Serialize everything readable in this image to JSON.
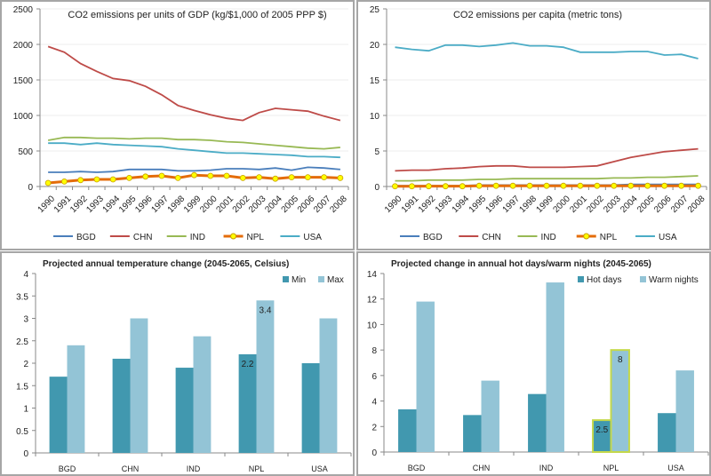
{
  "chart_data": [
    {
      "type": "line",
      "title": "CO2 emissions per units of GDP (kg/$1,000 of 2005 PPP $)",
      "xlabel": "",
      "ylabel": "",
      "x": [
        "1990",
        "1991",
        "1992",
        "1993",
        "1994",
        "1995",
        "1996",
        "1997",
        "1998",
        "1999",
        "2000",
        "2001",
        "2002",
        "2003",
        "2004",
        "2005",
        "2006",
        "2007",
        "2008"
      ],
      "ylim": [
        0,
        2500
      ],
      "yticks": [
        "0",
        "500",
        "1000",
        "1500",
        "2000",
        "2500"
      ],
      "grid": true,
      "legend": "bottom",
      "series": [
        {
          "name": "BGD",
          "color": "#4a7ebb",
          "values": [
            200,
            200,
            210,
            200,
            210,
            240,
            240,
            240,
            220,
            220,
            230,
            250,
            250,
            240,
            260,
            230,
            270,
            260,
            240
          ]
        },
        {
          "name": "CHN",
          "color": "#be4b48",
          "values": [
            1970,
            1890,
            1730,
            1620,
            1520,
            1490,
            1410,
            1290,
            1140,
            1070,
            1010,
            960,
            930,
            1040,
            1100,
            1080,
            1060,
            990,
            930
          ]
        },
        {
          "name": "IND",
          "color": "#98b954",
          "values": [
            650,
            690,
            690,
            680,
            680,
            670,
            680,
            680,
            660,
            660,
            650,
            630,
            620,
            600,
            580,
            560,
            540,
            530,
            550
          ]
        },
        {
          "name": "NPL",
          "color": "#e46c0a",
          "marker": "#ffff00",
          "values": [
            50,
            70,
            90,
            100,
            100,
            120,
            140,
            150,
            120,
            160,
            150,
            150,
            120,
            130,
            110,
            130,
            130,
            130,
            120
          ]
        },
        {
          "name": "USA",
          "color": "#4bacc6",
          "values": [
            610,
            610,
            590,
            610,
            590,
            580,
            570,
            560,
            530,
            510,
            490,
            470,
            470,
            460,
            450,
            440,
            420,
            420,
            410
          ]
        }
      ]
    },
    {
      "type": "line",
      "title": "CO2 emissions per capita (metric tons)",
      "xlabel": "",
      "ylabel": "",
      "x": [
        "1990",
        "1991",
        "1992",
        "1993",
        "1994",
        "1995",
        "1996",
        "1997",
        "1998",
        "1999",
        "2000",
        "2001",
        "2002",
        "2003",
        "2004",
        "2005",
        "2006",
        "2007",
        "2008"
      ],
      "ylim": [
        0,
        25
      ],
      "yticks": [
        "0",
        "5",
        "10",
        "15",
        "20",
        "25"
      ],
      "grid": true,
      "legend": "bottom",
      "series": [
        {
          "name": "BGD",
          "color": "#4a7ebb",
          "values": [
            0.1,
            0.1,
            0.1,
            0.1,
            0.1,
            0.2,
            0.2,
            0.2,
            0.2,
            0.2,
            0.2,
            0.2,
            0.2,
            0.2,
            0.3,
            0.3,
            0.3,
            0.3,
            0.3
          ]
        },
        {
          "name": "CHN",
          "color": "#be4b48",
          "values": [
            2.2,
            2.3,
            2.3,
            2.5,
            2.6,
            2.8,
            2.9,
            2.9,
            2.7,
            2.7,
            2.7,
            2.8,
            2.9,
            3.5,
            4.1,
            4.5,
            4.9,
            5.1,
            5.3
          ]
        },
        {
          "name": "IND",
          "color": "#98b954",
          "values": [
            0.8,
            0.8,
            0.9,
            0.9,
            0.9,
            1.0,
            1.0,
            1.1,
            1.1,
            1.1,
            1.1,
            1.1,
            1.1,
            1.2,
            1.2,
            1.3,
            1.3,
            1.4,
            1.5
          ]
        },
        {
          "name": "NPL",
          "color": "#e46c0a",
          "marker": "#ffff00",
          "values": [
            0.03,
            0.03,
            0.04,
            0.04,
            0.04,
            0.1,
            0.1,
            0.1,
            0.1,
            0.1,
            0.1,
            0.1,
            0.1,
            0.1,
            0.1,
            0.1,
            0.1,
            0.1,
            0.1
          ]
        },
        {
          "name": "USA",
          "color": "#4bacc6",
          "values": [
            19.6,
            19.3,
            19.1,
            19.9,
            19.9,
            19.7,
            19.9,
            20.2,
            19.8,
            19.8,
            19.6,
            18.9,
            18.9,
            18.9,
            19.0,
            19.0,
            18.5,
            18.6,
            18.0
          ]
        }
      ]
    },
    {
      "type": "bar",
      "title": "Projected annual temperature change (2045-2065,  Celsius)",
      "xlabel": "",
      "ylabel": "",
      "categories": [
        "BGD",
        "CHN",
        "IND",
        "NPL",
        "USA"
      ],
      "ylim": [
        0,
        4
      ],
      "yticks": [
        "0",
        "0.5",
        "1",
        "1.5",
        "2",
        "2.5",
        "3",
        "3.5",
        "4"
      ],
      "grid": false,
      "legend": "top-right",
      "series": [
        {
          "name": "Min",
          "color": "#4198af",
          "values": [
            1.7,
            2.1,
            1.9,
            2.2,
            2.0
          ]
        },
        {
          "name": "Max",
          "color": "#93c4d6",
          "values": [
            2.4,
            3.0,
            2.6,
            3.4,
            3.0
          ]
        }
      ],
      "data_labels": [
        {
          "series": 0,
          "category": "NPL",
          "text": "2.2"
        },
        {
          "series": 1,
          "category": "NPL",
          "text": "3.4"
        }
      ]
    },
    {
      "type": "bar",
      "title": "Projected change in annual hot days/warm nights (2045-2065)",
      "xlabel": "",
      "ylabel": "",
      "categories": [
        "BGD",
        "CHN",
        "IND",
        "NPL",
        "USA"
      ],
      "ylim": [
        0,
        14
      ],
      "yticks": [
        "0",
        "2",
        "4",
        "6",
        "8",
        "10",
        "12",
        "14"
      ],
      "grid": false,
      "legend": "top-right",
      "highlight_category": "NPL",
      "highlight_color": "#c4d84a",
      "series": [
        {
          "name": "Hot days",
          "color": "#4198af",
          "values": [
            3.35,
            2.9,
            4.55,
            2.5,
            3.05
          ]
        },
        {
          "name": "Warm nights",
          "color": "#93c4d6",
          "values": [
            11.8,
            5.6,
            13.3,
            8,
            6.4
          ]
        }
      ],
      "data_labels": [
        {
          "series": 0,
          "category": "NPL",
          "text": "2.5"
        },
        {
          "series": 1,
          "category": "NPL",
          "text": "8"
        }
      ]
    }
  ]
}
